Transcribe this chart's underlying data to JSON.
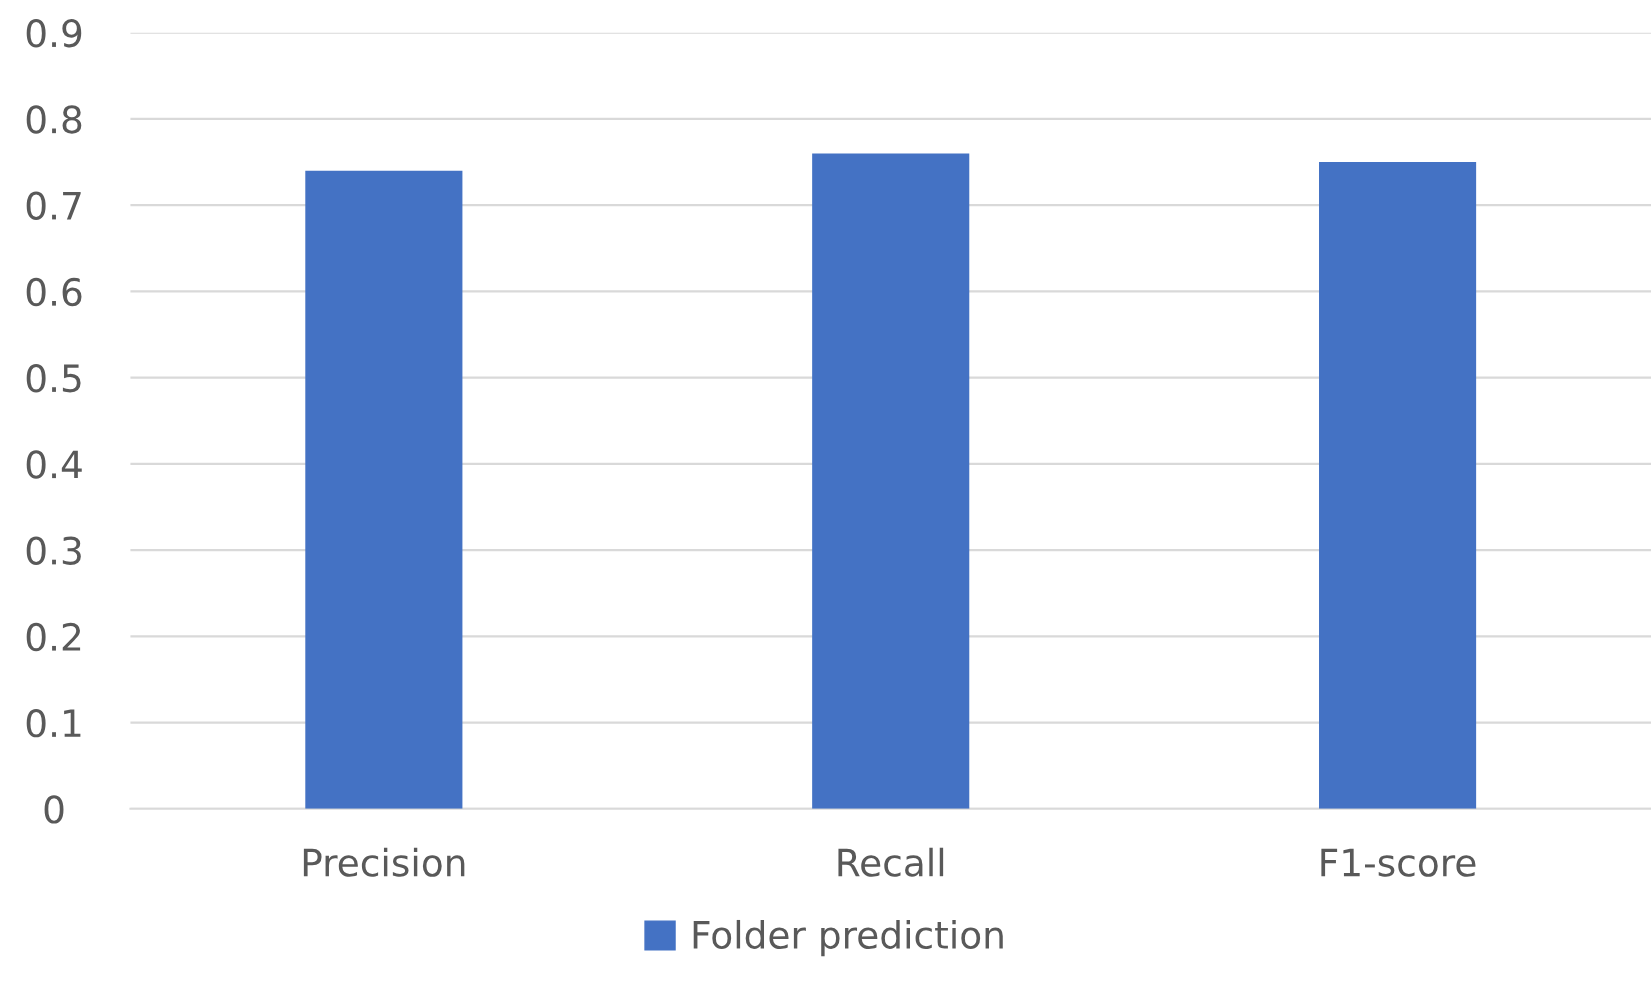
{
  "chart_data": {
    "type": "bar",
    "categories": [
      "Precision",
      "Recall",
      "F1-score"
    ],
    "series": [
      {
        "name": "Folder prediction",
        "color": "#4472c4",
        "values": [
          0.74,
          0.76,
          0.75
        ]
      }
    ],
    "ylim": [
      0,
      0.9
    ],
    "yticks": [
      0,
      0.1,
      0.2,
      0.3,
      0.4,
      0.5,
      0.6,
      0.7,
      0.8,
      0.9
    ],
    "grid": "y",
    "legend": "bottom"
  }
}
